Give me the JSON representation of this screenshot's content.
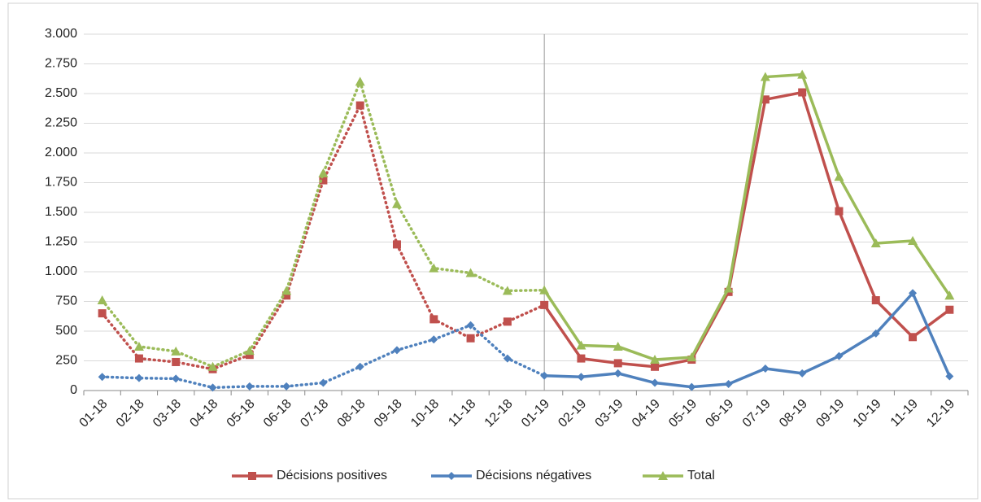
{
  "chart_data": {
    "type": "line",
    "categories": [
      "01-18",
      "02-18",
      "03-18",
      "04-18",
      "05-18",
      "06-18",
      "07-18",
      "08-18",
      "09-18",
      "10-18",
      "11-18",
      "12-18",
      "01-19",
      "02-19",
      "03-19",
      "04-19",
      "05-19",
      "06-19",
      "07-19",
      "08-19",
      "09-19",
      "10-19",
      "11-19",
      "12-19"
    ],
    "series": [
      {
        "name": "Décisions positives",
        "color": "#c0504d",
        "marker": "square",
        "values": [
          650,
          270,
          240,
          180,
          300,
          800,
          1770,
          2400,
          1230,
          600,
          440,
          580,
          720,
          270,
          230,
          200,
          260,
          830,
          2450,
          2510,
          1510,
          760,
          450,
          680
        ]
      },
      {
        "name": "Décisions négatives",
        "color": "#4f81bd",
        "marker": "diamond",
        "values": [
          115,
          105,
          100,
          25,
          35,
          35,
          65,
          200,
          340,
          430,
          550,
          270,
          125,
          115,
          145,
          65,
          30,
          55,
          185,
          145,
          290,
          480,
          820,
          120
        ]
      },
      {
        "name": "Total",
        "color": "#9bbb59",
        "marker": "triangle",
        "values": [
          760,
          370,
          330,
          200,
          335,
          840,
          1830,
          2600,
          1570,
          1030,
          990,
          840,
          845,
          380,
          370,
          260,
          280,
          860,
          2640,
          2660,
          1800,
          1240,
          1260,
          800
        ]
      }
    ],
    "dotted_until": "01-19",
    "vline": "01-19",
    "ylim": [
      0,
      3000
    ],
    "yticks": [
      0,
      250,
      500,
      750,
      {
        "value": 1000,
        "label": "1.000"
      },
      {
        "value": 1250,
        "label": "1.250"
      },
      {
        "value": 1500,
        "label": "1.500"
      },
      {
        "value": 1750,
        "label": "1.750"
      },
      {
        "value": 2000,
        "label": "2.000"
      },
      {
        "value": 2250,
        "label": "2.250"
      },
      {
        "value": 2500,
        "label": "2.500"
      },
      {
        "value": 2750,
        "label": "2.750"
      },
      {
        "value": 3000,
        "label": "3.000"
      }
    ],
    "grid": true,
    "legend": "bottom"
  }
}
